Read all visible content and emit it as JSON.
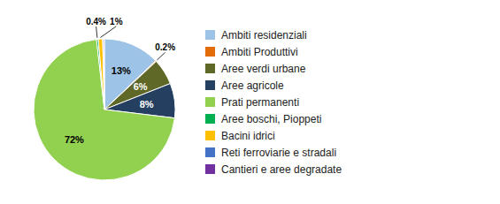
{
  "chart_data": {
    "type": "pie",
    "categories": [
      "Ambiti residenziali",
      "Ambiti Produttivi",
      "Aree verdi urbane",
      "Aree agricole",
      "Prati permanenti",
      "Aree boschi, Pioppeti",
      "Bacini idrici",
      "Reti ferroviarie e stradali",
      "Cantieri e aree degradate"
    ],
    "values": [
      13,
      0.2,
      6,
      8,
      72,
      0.4,
      1,
      0.2,
      0.2
    ],
    "value_labels": [
      "13%",
      "0.2%",
      "6%",
      "8%",
      "72%",
      "0.4%",
      "1%",
      null,
      null
    ],
    "colors": [
      "#9DC3E6",
      "#E36C09",
      "#606828",
      "#243F60",
      "#92D050",
      "#00B050",
      "#FFC000",
      "#4472C4",
      "#7030A0"
    ],
    "data_labels": true,
    "legend": "right"
  }
}
